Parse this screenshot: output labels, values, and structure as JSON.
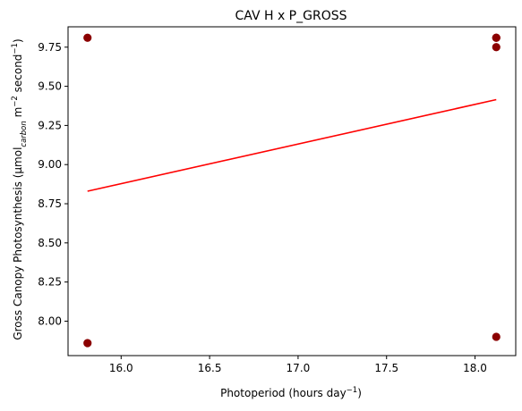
{
  "chart_data": {
    "type": "scatter",
    "title": "CAV H x P_GROSS",
    "xlabel": {
      "parts": [
        {
          "text": "Photoperiod (hours day",
          "style": "normal"
        },
        {
          "text": "−1",
          "style": "sup"
        },
        {
          "text": ")",
          "style": "normal"
        }
      ]
    },
    "ylabel": {
      "parts": [
        {
          "text": "Gross Canopy Photosynthesis (µmol",
          "style": "normal"
        },
        {
          "text": "carbon",
          "style": "sub-italic"
        },
        {
          "text": " m",
          "style": "normal"
        },
        {
          "text": "−2",
          "style": "sup"
        },
        {
          "text": " second",
          "style": "normal"
        },
        {
          "text": "−1",
          "style": "sup"
        },
        {
          "text": ")",
          "style": "normal"
        }
      ]
    },
    "xlim": [
      15.7,
      18.23
    ],
    "ylim": [
      7.78,
      9.88
    ],
    "xticks": [
      16.0,
      16.5,
      17.0,
      17.5,
      18.0
    ],
    "xtick_labels": [
      "16.0",
      "16.5",
      "17.0",
      "17.5",
      "18.0"
    ],
    "yticks": [
      8.0,
      8.25,
      8.5,
      8.75,
      9.0,
      9.25,
      9.5,
      9.75
    ],
    "ytick_labels": [
      "8.00",
      "8.25",
      "8.50",
      "8.75",
      "9.00",
      "9.25",
      "9.50",
      "9.75"
    ],
    "grid": false,
    "series": [
      {
        "kind": "scatter",
        "color": "#8b0000",
        "points": [
          {
            "x": 15.81,
            "y": 9.81
          },
          {
            "x": 15.81,
            "y": 7.86
          },
          {
            "x": 18.12,
            "y": 9.81
          },
          {
            "x": 18.12,
            "y": 9.81
          },
          {
            "x": 18.12,
            "y": 9.75
          },
          {
            "x": 18.12,
            "y": 7.9
          }
        ]
      },
      {
        "kind": "line",
        "color": "#ff0000",
        "points": [
          {
            "x": 15.81,
            "y": 8.83
          },
          {
            "x": 18.12,
            "y": 9.415
          }
        ]
      }
    ]
  }
}
